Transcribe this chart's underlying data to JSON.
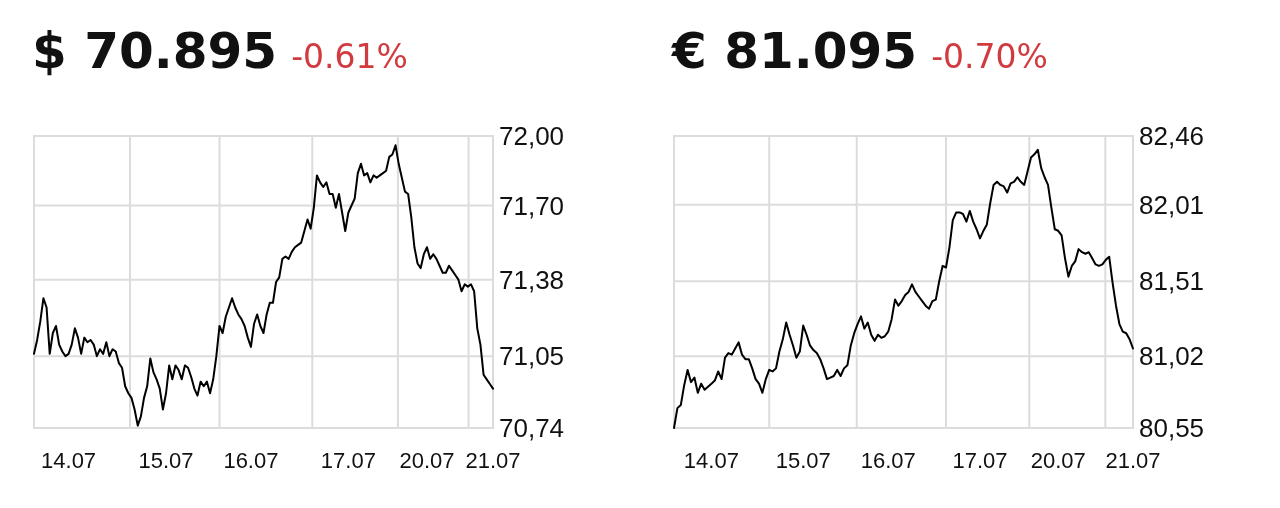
{
  "chart_data": [
    {
      "type": "line",
      "title": "$ 70.895",
      "subtitle": "-0.61%",
      "ylim": [
        70.74,
        72.0
      ],
      "categories": [
        null,
        null,
        null,
        null,
        null,
        null,
        null,
        null,
        null,
        null,
        null,
        "14.07",
        null,
        null,
        null,
        null,
        null,
        null,
        null,
        null,
        null,
        null,
        null,
        null,
        null,
        null,
        null,
        null,
        null,
        null,
        null,
        null,
        null,
        null,
        null,
        null,
        null,
        null,
        null,
        null,
        null,
        null,
        "15.07",
        null,
        null,
        null,
        null,
        null,
        null,
        null,
        null,
        null,
        null,
        null,
        null,
        null,
        null,
        null,
        null,
        null,
        null,
        null,
        null,
        null,
        null,
        null,
        null,
        null,
        null,
        "16.07",
        null,
        null,
        null,
        null,
        null,
        null,
        null,
        null,
        null,
        null,
        null,
        null,
        null,
        null,
        null,
        null,
        null,
        null,
        null,
        null,
        null,
        null,
        null,
        null,
        null,
        null,
        null,
        null,
        null,
        null,
        "17.07",
        null,
        null,
        null,
        null,
        null,
        null,
        null,
        null,
        null,
        null,
        null,
        null,
        null,
        null,
        null,
        null,
        null,
        null,
        null,
        null,
        null,
        null,
        null,
        null,
        "20.07",
        null,
        null,
        null,
        null,
        null,
        null,
        null,
        null,
        null,
        null,
        null,
        null,
        null,
        null,
        null,
        null,
        null,
        null,
        null,
        null,
        "21.07"
      ],
      "yticks": [
        {
          "value": 70.74,
          "label": "70,74"
        },
        {
          "value": 71.05,
          "label": "71,05"
        },
        {
          "value": 71.38,
          "label": "71,38"
        },
        {
          "value": 71.7,
          "label": "71,70"
        },
        {
          "value": 72.0,
          "label": "72,00"
        }
      ],
      "grid": true,
      "series": [
        {
          "color": "#000000",
          "values": [
            71.06,
            71.12,
            71.2,
            71.3,
            71.26,
            71.06,
            71.15,
            71.18,
            71.1,
            71.07,
            71.05,
            71.06,
            71.1,
            71.17,
            71.13,
            71.06,
            71.13,
            71.11,
            71.12,
            71.1,
            71.05,
            71.08,
            71.06,
            71.11,
            71.05,
            71.08,
            71.07,
            71.02,
            71.0,
            70.92,
            70.89,
            70.87,
            70.82,
            70.75,
            70.79,
            70.87,
            70.92,
            71.04,
            70.98,
            70.95,
            70.91,
            70.82,
            70.89,
            71.01,
            70.95,
            71.01,
            70.99,
            70.95,
            71.01,
            71.0,
            70.96,
            70.91,
            70.88,
            70.94,
            70.92,
            70.94,
            70.89,
            70.95,
            71.05,
            71.18,
            71.15,
            71.22,
            71.26,
            71.3,
            71.26,
            71.23,
            71.21,
            71.18,
            71.13,
            71.09,
            71.19,
            71.23,
            71.18,
            71.15,
            71.23,
            71.28,
            71.28,
            71.37,
            71.39,
            71.47,
            71.48,
            71.47,
            71.5,
            71.52,
            71.53,
            71.54,
            71.59,
            71.64,
            71.6,
            71.69,
            71.83,
            71.8,
            71.78,
            71.8,
            71.75,
            71.75,
            71.69,
            71.75,
            71.67,
            71.59,
            71.67,
            71.7,
            71.73,
            71.84,
            71.88,
            71.83,
            71.84,
            71.8,
            71.83,
            71.82,
            71.83,
            71.84,
            71.85,
            71.91,
            71.92,
            71.96,
            71.88,
            71.82,
            71.76,
            71.75,
            71.65,
            71.52,
            71.45,
            71.43,
            71.49,
            71.52,
            71.47,
            71.49,
            71.47,
            71.44,
            71.41,
            71.41,
            71.44,
            71.42,
            71.4,
            71.38,
            71.33,
            71.36,
            71.35,
            71.36,
            71.33,
            71.17,
            71.1,
            70.97,
            70.95,
            70.93,
            70.91
          ]
        }
      ]
    },
    {
      "type": "line",
      "title": "€ 81.095",
      "subtitle": "-0.70%",
      "ylim": [
        80.55,
        82.46
      ],
      "categories": [
        null,
        null,
        null,
        null,
        null,
        null,
        null,
        null,
        null,
        null,
        null,
        "14.07",
        null,
        null,
        null,
        null,
        null,
        null,
        null,
        null,
        null,
        null,
        null,
        null,
        null,
        null,
        null,
        null,
        null,
        null,
        null,
        null,
        null,
        null,
        null,
        null,
        null,
        null,
        "15.07",
        null,
        null,
        null,
        null,
        null,
        null,
        null,
        null,
        null,
        null,
        null,
        null,
        null,
        null,
        null,
        null,
        null,
        null,
        null,
        null,
        null,
        null,
        null,
        null,
        "16.07",
        null,
        null,
        null,
        null,
        null,
        null,
        null,
        null,
        null,
        null,
        null,
        null,
        null,
        null,
        null,
        null,
        null,
        null,
        null,
        null,
        null,
        null,
        null,
        null,
        null,
        null,
        "17.07",
        null,
        null,
        null,
        null,
        null,
        null,
        null,
        null,
        null,
        null,
        null,
        null,
        null,
        null,
        null,
        null,
        null,
        null,
        null,
        null,
        null,
        null,
        "20.07",
        null,
        null,
        null,
        null,
        null,
        null,
        null,
        null,
        null,
        null,
        null,
        null,
        null,
        null,
        null,
        null,
        null,
        null,
        null,
        null,
        null,
        "21.07"
      ],
      "yticks": [
        {
          "value": 80.55,
          "label": "80,55"
        },
        {
          "value": 81.02,
          "label": "81,02"
        },
        {
          "value": 81.51,
          "label": "81,51"
        },
        {
          "value": 82.01,
          "label": "82,01"
        },
        {
          "value": 82.46,
          "label": "82,46"
        }
      ],
      "grid": true,
      "series": [
        {
          "color": "#000000",
          "values": [
            80.55,
            80.68,
            80.7,
            80.83,
            80.93,
            80.85,
            80.88,
            80.78,
            80.84,
            80.8,
            80.82,
            80.84,
            80.86,
            80.92,
            80.87,
            81.01,
            81.04,
            81.03,
            81.07,
            81.11,
            81.03,
            81.0,
            81.0,
            80.94,
            80.87,
            80.84,
            80.78,
            80.87,
            80.93,
            80.92,
            80.94,
            81.05,
            81.13,
            81.24,
            81.16,
            81.09,
            81.01,
            81.05,
            81.22,
            81.16,
            81.09,
            81.06,
            81.04,
            81.0,
            80.94,
            80.87,
            80.88,
            80.89,
            80.93,
            80.89,
            80.94,
            80.96,
            81.09,
            81.17,
            81.23,
            81.28,
            81.2,
            81.24,
            81.16,
            81.12,
            81.16,
            81.14,
            81.15,
            81.18,
            81.26,
            81.39,
            81.35,
            81.38,
            81.42,
            81.44,
            81.49,
            81.44,
            81.41,
            81.38,
            81.35,
            81.33,
            81.38,
            81.39,
            81.51,
            81.61,
            81.6,
            81.73,
            81.91,
            81.96,
            81.96,
            81.95,
            81.9,
            81.97,
            81.9,
            81.85,
            81.79,
            81.84,
            81.88,
            82.02,
            82.14,
            82.16,
            82.14,
            82.13,
            82.09,
            82.15,
            82.16,
            82.19,
            82.16,
            82.14,
            82.23,
            82.32,
            82.34,
            82.37,
            82.25,
            82.19,
            82.14,
            81.99,
            81.85,
            81.84,
            81.81,
            81.66,
            81.54,
            81.61,
            81.64,
            81.72,
            81.7,
            81.69,
            81.7,
            81.66,
            81.62,
            81.61,
            81.62,
            81.65,
            81.67,
            81.5,
            81.35,
            81.23,
            81.18,
            81.17,
            81.13,
            81.07
          ]
        }
      ]
    }
  ]
}
